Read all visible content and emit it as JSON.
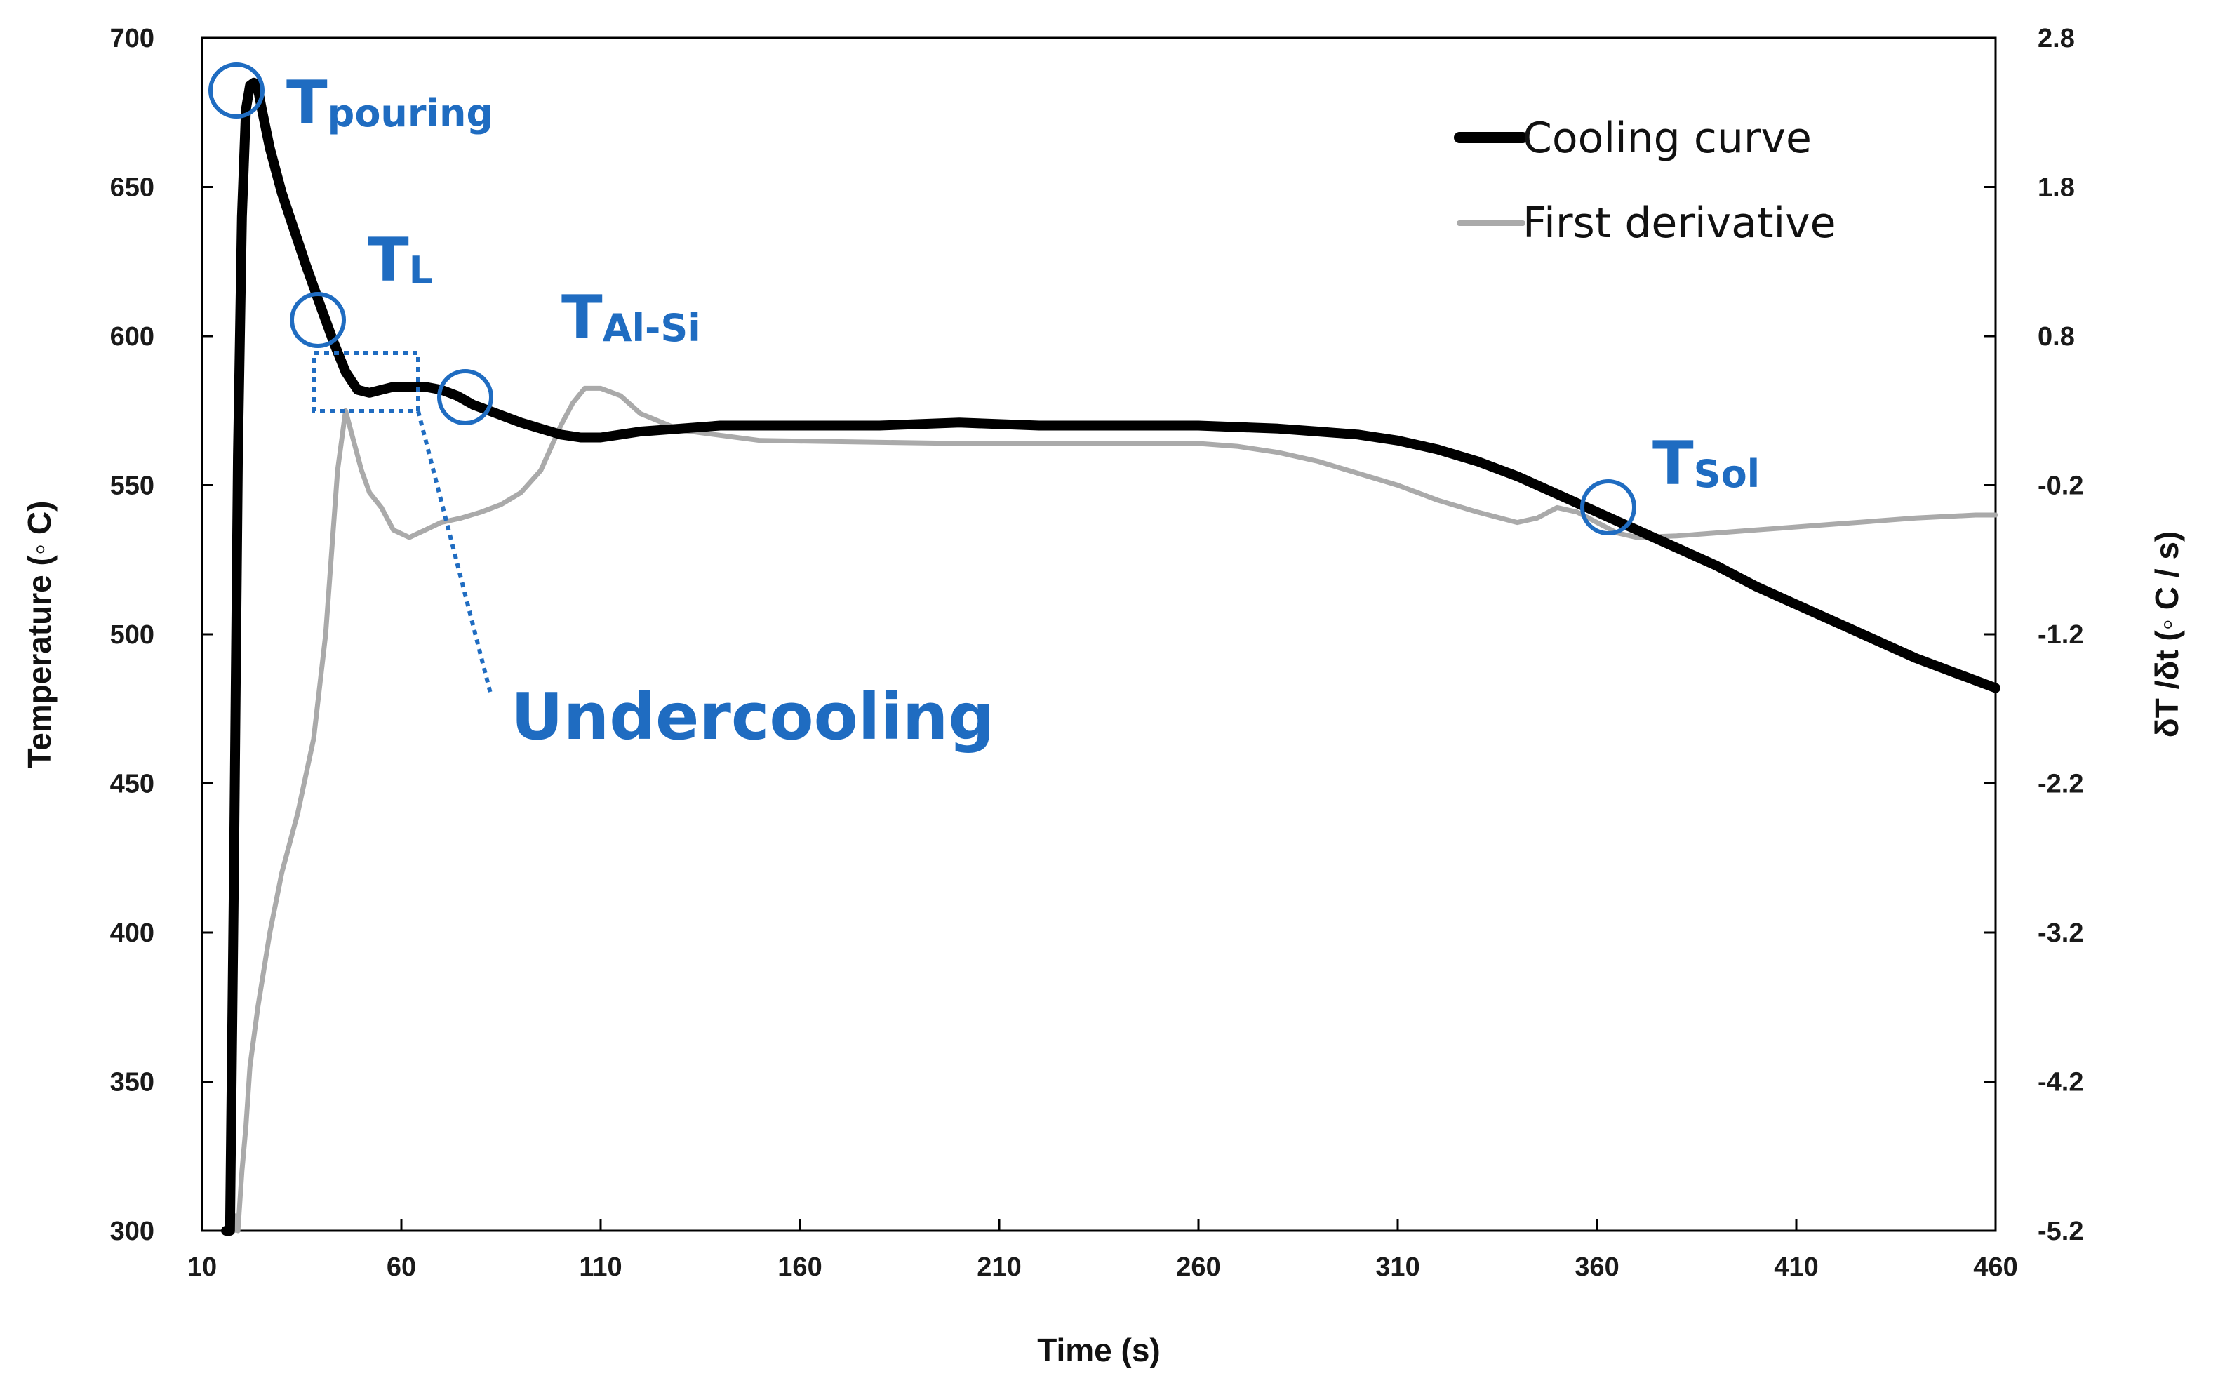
{
  "chart_data": {
    "type": "line",
    "xlabel": "Time (s)",
    "ylabel": "Temperature (◦ C)",
    "y2label": "δT /δt (◦ C / s)",
    "xlim": [
      10,
      460
    ],
    "ylim": [
      300,
      700
    ],
    "y2lim": [
      -5.2,
      2.8
    ],
    "xticks": [
      "10",
      "60",
      "110",
      "160",
      "210",
      "260",
      "310",
      "360",
      "410",
      "460"
    ],
    "yticks": [
      "300",
      "350",
      "400",
      "450",
      "500",
      "550",
      "600",
      "650",
      "700"
    ],
    "y2ticks": [
      "-5.2",
      "-4.2",
      "-3.2",
      "-2.2",
      "-1.2",
      "-0.2",
      "0.8",
      "1.8",
      "2.8"
    ],
    "grid": false,
    "legend_position": "top-right",
    "colors": {
      "cooling": "#000000",
      "derivative": "#aaaaaa",
      "annotation": "#1f6cc1"
    },
    "series": [
      {
        "name": "Cooling curve",
        "axis": "left",
        "x": [
          16,
          17,
          18,
          19,
          20,
          21,
          22,
          23,
          24,
          25,
          27,
          30,
          33,
          36,
          40,
          43,
          46,
          49,
          52,
          55,
          58,
          62,
          66,
          70,
          74,
          78,
          82,
          86,
          90,
          95,
          100,
          105,
          110,
          115,
          120,
          130,
          140,
          160,
          180,
          200,
          220,
          240,
          260,
          280,
          290,
          300,
          310,
          320,
          330,
          340,
          350,
          360,
          370,
          380,
          390,
          400,
          410,
          420,
          430,
          440,
          450,
          460
        ],
        "values": [
          300,
          300,
          420,
          560,
          640,
          676,
          684,
          685,
          683,
          676,
          663,
          648,
          636,
          624,
          609,
          598,
          588,
          582,
          581,
          582,
          583,
          583,
          583,
          582,
          580,
          577,
          575,
          573,
          571,
          569,
          567,
          566,
          566,
          567,
          568,
          569,
          570,
          570,
          570,
          571,
          570,
          570,
          570,
          569,
          568,
          567,
          565,
          562,
          558,
          553,
          547,
          541,
          535,
          529,
          523,
          516,
          510,
          504,
          498,
          492,
          487,
          482
        ]
      },
      {
        "name": "First derivative",
        "axis": "right",
        "x": [
          18,
          18.5,
          19,
          20,
          21,
          22,
          24,
          27,
          30,
          34,
          38,
          41,
          44,
          46,
          48,
          50,
          52,
          55,
          58,
          62,
          66,
          70,
          75,
          80,
          85,
          90,
          95,
          100,
          103,
          106,
          110,
          115,
          120,
          130,
          150,
          200,
          250,
          260,
          270,
          280,
          290,
          300,
          310,
          320,
          330,
          340,
          345,
          350,
          355,
          360,
          365,
          370,
          380,
          400,
          420,
          440,
          455,
          460
        ],
        "values": [
          -5.3,
          -5.1,
          -5.2,
          -4.8,
          -4.5,
          -4.1,
          -3.7,
          -3.2,
          -2.8,
          -2.4,
          -1.9,
          -1.2,
          -0.1,
          0.3,
          0.1,
          -0.1,
          -0.25,
          -0.35,
          -0.5,
          -0.55,
          -0.5,
          -0.45,
          -0.42,
          -0.38,
          -0.33,
          -0.25,
          -0.1,
          0.2,
          0.35,
          0.45,
          0.45,
          0.4,
          0.28,
          0.17,
          0.1,
          0.08,
          0.08,
          0.08,
          0.06,
          0.02,
          -0.04,
          -0.12,
          -0.2,
          -0.3,
          -0.38,
          -0.45,
          -0.42,
          -0.35,
          -0.38,
          -0.45,
          -0.52,
          -0.55,
          -0.54,
          -0.5,
          -0.46,
          -0.42,
          -0.4,
          -0.4
        ]
      }
    ],
    "annotations": {
      "pouring": {
        "main": "T",
        "sub": "pouring"
      },
      "liquidus": {
        "main": "T",
        "sub": "L"
      },
      "alsi": {
        "main": "T",
        "sub": "Al-Si"
      },
      "solidus": {
        "main": "T",
        "sub": "Sol"
      },
      "undercooling": "Undercooling"
    }
  }
}
